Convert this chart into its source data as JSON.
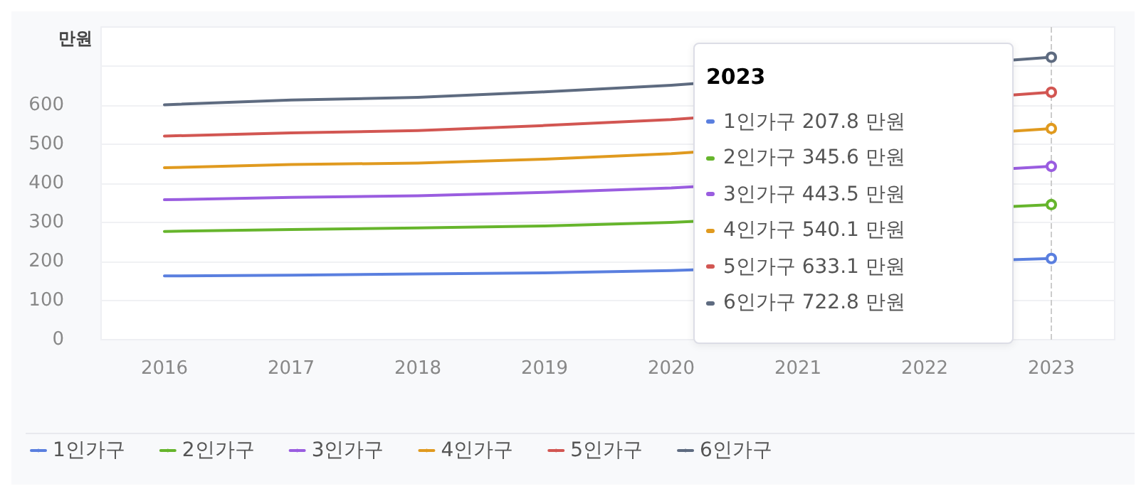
{
  "chart_data": {
    "type": "line",
    "ylabel": "만원",
    "categories": [
      "2016",
      "2017",
      "2018",
      "2019",
      "2020",
      "2021",
      "2022",
      "2023"
    ],
    "series": [
      {
        "name": "1인가구",
        "color": "#5a7fdf",
        "values": [
          163,
          165,
          168,
          171,
          177,
          null,
          null,
          207.8
        ]
      },
      {
        "name": "2인가구",
        "color": "#66b52c",
        "values": [
          277,
          282,
          286,
          291,
          300,
          null,
          null,
          345.6
        ]
      },
      {
        "name": "3인가구",
        "color": "#9a5de0",
        "values": [
          358,
          364,
          368,
          377,
          388,
          null,
          null,
          443.5
        ]
      },
      {
        "name": "4인가구",
        "color": "#e09a1f",
        "values": [
          440,
          448,
          452,
          462,
          476,
          null,
          null,
          540.1
        ]
      },
      {
        "name": "5인가구",
        "color": "#d25652",
        "values": [
          521,
          529,
          535,
          548,
          563,
          null,
          null,
          633.1
        ]
      },
      {
        "name": "6인가구",
        "color": "#5e6b80",
        "values": [
          601,
          613,
          620,
          634,
          651,
          null,
          null,
          722.8
        ]
      }
    ],
    "ylim": [
      0,
      800
    ],
    "yticks": [
      0,
      100,
      200,
      300,
      400,
      500,
      600,
      {
        "value": 700,
        "label": null
      }
    ],
    "ref_lines": [
      {
        "axis": "x",
        "value": "2023",
        "color": "#cccccc",
        "line_style": "dashed"
      }
    ],
    "annotations": [
      "2023",
      "1인가구 207.8 만원",
      "2인가구 345.6 만원",
      "3인가구 443.5 만원",
      "4인가구 540.1 만원",
      "5인가구 633.1 만원",
      "6인가구 722.8 만원"
    ],
    "grid": "y",
    "legend": "bottom left",
    "marker": "none",
    "line_style": "solid"
  }
}
